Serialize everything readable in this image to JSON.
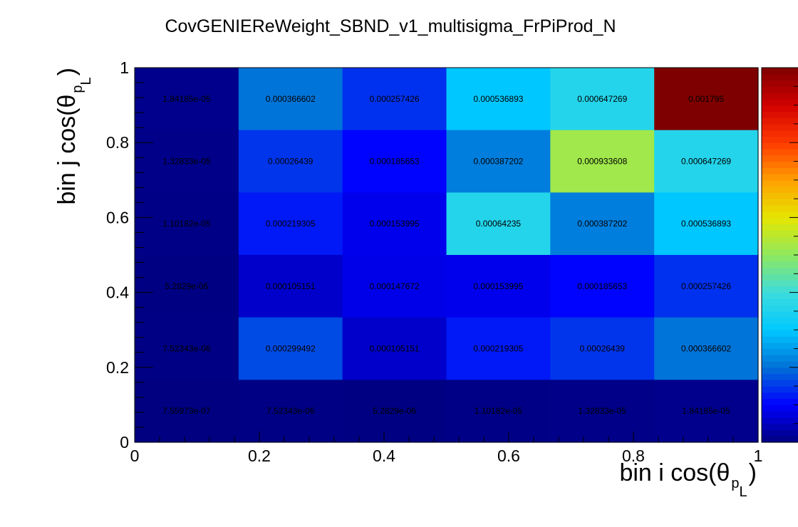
{
  "chart_data": {
    "type": "heatmap",
    "title": "CovGENIEReWeight_SBND_v1_multisigma_FrPiProd_N",
    "xlabel": {
      "main": "bin i cos(θ",
      "sub": "p",
      "sub2": "L",
      "close": ")"
    },
    "ylabel": {
      "main": "bin j cos(θ",
      "sub": "p",
      "sub2": "L",
      "close": ")"
    },
    "xlim": [
      0,
      1
    ],
    "ylim": [
      0,
      1
    ],
    "x_ticks": [
      "0",
      "0.2",
      "0.4",
      "0.6",
      "0.8",
      "1"
    ],
    "y_ticks": [
      "0",
      "0.2",
      "0.4",
      "0.6",
      "0.8",
      "1"
    ],
    "x_tick_values": [
      0,
      0.2,
      0.4,
      0.6,
      0.8,
      1
    ],
    "y_tick_values": [
      0,
      0.2,
      0.4,
      0.6,
      0.8,
      1
    ],
    "nbins_x": 6,
    "nbins_y": 6,
    "z_range": [
      0,
      0.001795
    ],
    "colormap": [
      "#00007f",
      "#0000ff",
      "#0070d7",
      "#00c8ff",
      "#3cdcdc",
      "#8ee85e",
      "#e6e600",
      "#ff9f00",
      "#ff3a00",
      "#d20000",
      "#7f0000"
    ],
    "rows_top_to_bottom": [
      {
        "values": [
          1.84185e-05,
          0.000366602,
          0.000257426,
          0.000536893,
          0.000647269,
          0.001795
        ],
        "labels": [
          "1.84185e-05",
          "0.000366602",
          "0.000257426",
          "0.000536893",
          "0.000647269",
          "0.001795"
        ]
      },
      {
        "values": [
          1.32833e-05,
          0.00026439,
          0.000185653,
          0.000387202,
          0.000933608,
          0.000647269
        ],
        "labels": [
          "1.32833e-05",
          "0.00026439",
          "0.000185653",
          "0.000387202",
          "0.000933608",
          "0.000647269"
        ]
      },
      {
        "values": [
          1.10182e-05,
          0.000219305,
          0.000153995,
          0.00064235,
          0.000387202,
          0.000536893
        ],
        "labels": [
          "1.10182e-05",
          "0.000219305",
          "0.000153995",
          "0.00064235",
          "0.000387202",
          "0.000536893"
        ]
      },
      {
        "values": [
          5.2829e-06,
          0.000105151,
          0.000147672,
          0.000153995,
          0.000185653,
          0.000257426
        ],
        "labels": [
          "5.2829e-06",
          "0.000105151",
          "0.000147672",
          "0.000153995",
          "0.000185653",
          "0.000257426"
        ]
      },
      {
        "values": [
          7.52343e-06,
          0.000299492,
          0.000105151,
          0.000219305,
          0.00026439,
          0.000366602
        ],
        "labels": [
          "7.52343e-06",
          "0.000299492",
          "0.000105151",
          "0.000219305",
          "0.00026439",
          "0.000366602"
        ]
      },
      {
        "values": [
          7.55973e-07,
          7.52343e-06,
          5.2829e-06,
          1.10182e-05,
          1.32833e-05,
          1.84185e-05
        ],
        "labels": [
          "7.55973e-07",
          "7.52343e-06",
          "5.2829e-06",
          "1.10182e-05",
          "1.32833e-05",
          "1.84185e-05"
        ]
      }
    ],
    "colorbar": true,
    "grid": false
  }
}
